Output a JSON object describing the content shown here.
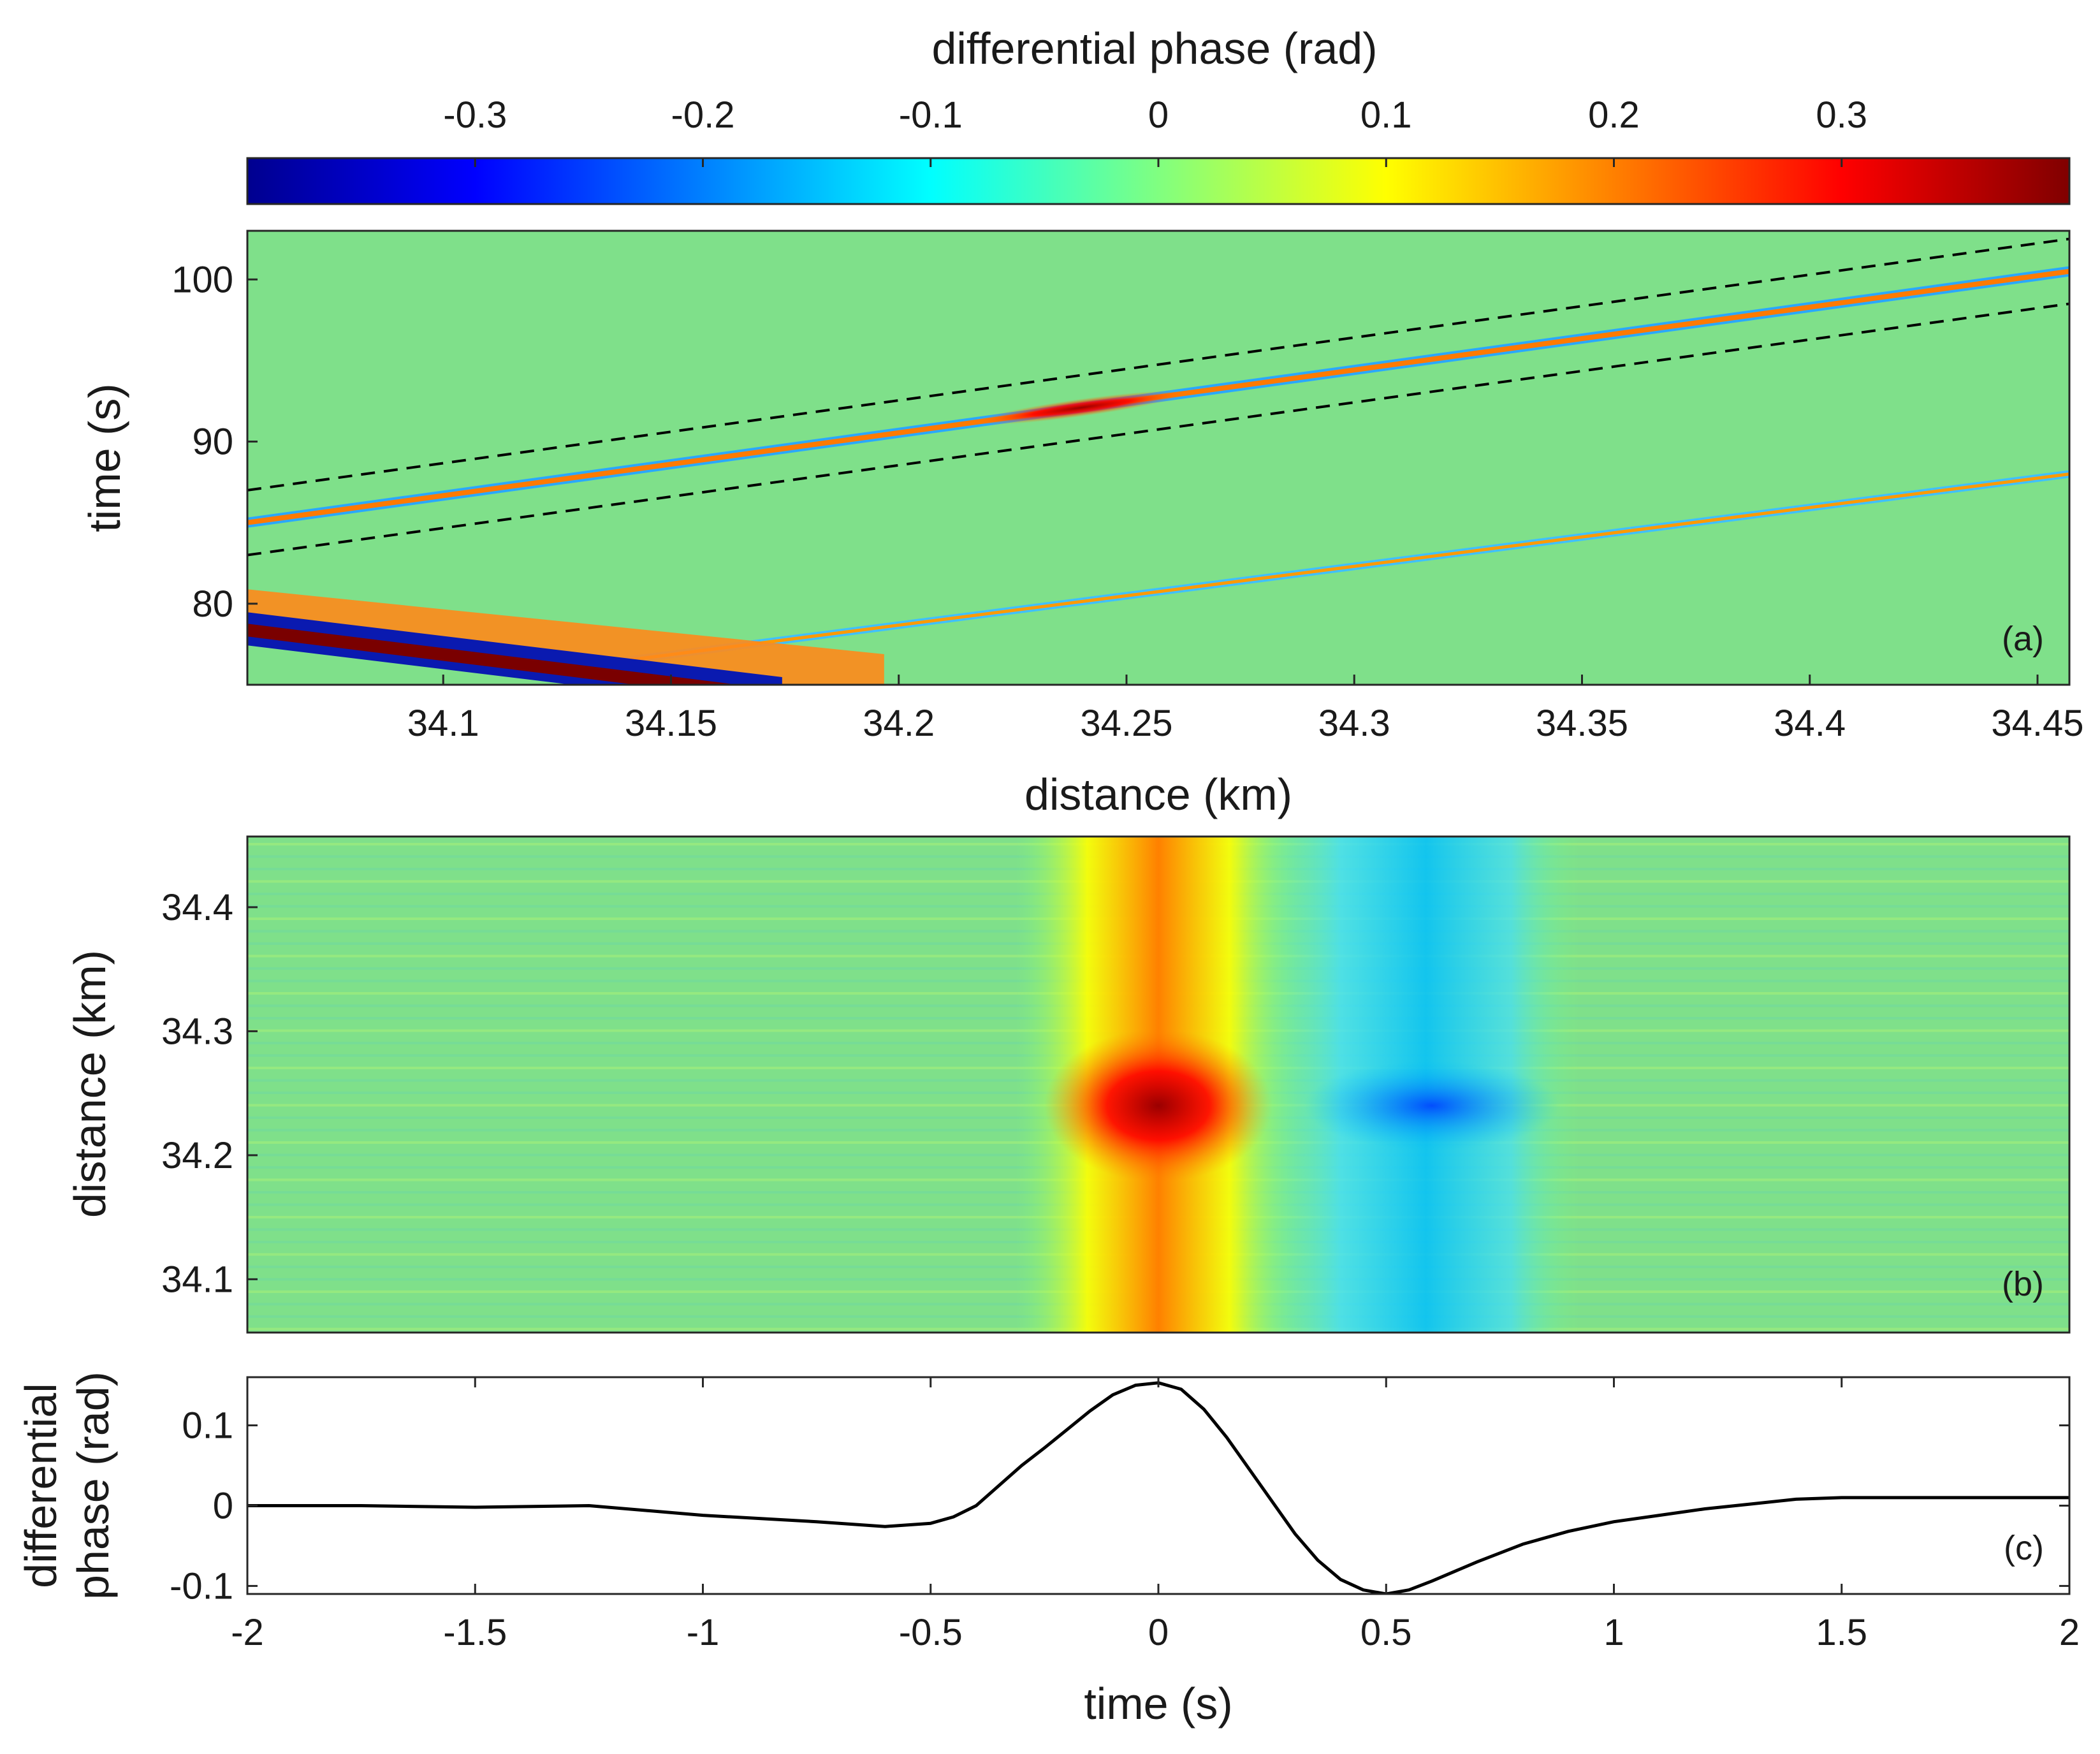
{
  "colors": {
    "frame": "#262626",
    "background_field": "#7fe08a",
    "line": "#000000",
    "colormap_stops": [
      "#00008f",
      "#0000ff",
      "#0080ff",
      "#00ffff",
      "#80ff80",
      "#ffff00",
      "#ff8000",
      "#ff0000",
      "#800000"
    ]
  },
  "chart_data": [
    {
      "id": "colorbar",
      "type": "heatmap",
      "title": "differential phase (rad)",
      "range": [
        -0.4,
        0.4
      ],
      "ticks": [
        -0.3,
        -0.2,
        -0.1,
        0,
        0.1,
        0.2,
        0.3
      ],
      "tick_labels": [
        "-0.3",
        "-0.2",
        "-0.1",
        "0",
        "0.1",
        "0.2",
        "0.3"
      ]
    },
    {
      "id": "a",
      "type": "heatmap",
      "panel_label": "(a)",
      "xlabel": "distance (km)",
      "ylabel": "time (s)",
      "xlim": [
        34.057,
        34.457
      ],
      "ylim": [
        75,
        103
      ],
      "xticks": [
        34.1,
        34.15,
        34.2,
        34.25,
        34.3,
        34.35,
        34.4,
        34.45
      ],
      "xtick_labels": [
        "34.1",
        "34.15",
        "34.2",
        "34.25",
        "34.3",
        "34.35",
        "34.4",
        "34.45"
      ],
      "yticks": [
        80,
        90,
        100
      ],
      "ytick_labels": [
        "80",
        "90",
        "100"
      ],
      "traces": [
        {
          "name": "main wave",
          "from": [
            34.057,
            85.0
          ],
          "to": [
            34.457,
            100.5
          ],
          "sign": "positive",
          "peak_near_km": 34.24
        },
        {
          "name": "secondary wave",
          "from": [
            34.14,
            76.5
          ],
          "to": [
            34.457,
            88.0
          ],
          "sign": "positive"
        },
        {
          "name": "strong near-field",
          "from": [
            34.057,
            79.0
          ],
          "to": [
            34.18,
            75.0
          ],
          "sign": "mixed"
        }
      ],
      "window_lines": [
        {
          "from": [
            34.057,
            87.0
          ],
          "to": [
            34.457,
            102.5
          ],
          "style": "dashed"
        },
        {
          "from": [
            34.057,
            83.0
          ],
          "to": [
            34.457,
            98.5
          ],
          "style": "dashed"
        }
      ]
    },
    {
      "id": "b",
      "type": "heatmap",
      "panel_label": "(b)",
      "xlabel": "",
      "ylabel": "distance (km)",
      "xlim": [
        -2,
        2
      ],
      "ylim": [
        34.057,
        34.457
      ],
      "yticks": [
        34.1,
        34.2,
        34.3,
        34.4
      ],
      "ytick_labels": [
        "34.1",
        "34.2",
        "34.3",
        "34.4"
      ],
      "features": [
        {
          "name": "positive band",
          "time_center": 0.0,
          "time_halfwidth": 0.25,
          "peak_value": 0.35,
          "peak_distance_km": 34.24
        },
        {
          "name": "negative band",
          "time_center": 0.55,
          "time_halfwidth": 0.25,
          "peak_value": -0.12,
          "peak_distance_km": 34.24
        }
      ]
    },
    {
      "id": "c",
      "type": "line",
      "panel_label": "(c)",
      "xlabel": "time (s)",
      "ylabel": [
        "differential",
        "phase (rad)"
      ],
      "xlim": [
        -2,
        2
      ],
      "ylim": [
        -0.11,
        0.16
      ],
      "xticks": [
        -2,
        -1.5,
        -1,
        -0.5,
        0,
        0.5,
        1,
        1.5,
        2
      ],
      "xtick_labels": [
        "-2",
        "-1.5",
        "-1",
        "-0.5",
        "0",
        "0.5",
        "1",
        "1.5",
        "2"
      ],
      "yticks": [
        -0.1,
        0,
        0.1
      ],
      "ytick_labels": [
        "-0.1",
        "0",
        "0.1"
      ],
      "series": [
        {
          "name": "stacked trace",
          "x": [
            -2.0,
            -1.75,
            -1.5,
            -1.25,
            -1.0,
            -0.75,
            -0.6,
            -0.5,
            -0.45,
            -0.4,
            -0.35,
            -0.3,
            -0.25,
            -0.2,
            -0.15,
            -0.1,
            -0.05,
            0.0,
            0.05,
            0.1,
            0.15,
            0.2,
            0.25,
            0.3,
            0.35,
            0.4,
            0.45,
            0.5,
            0.55,
            0.6,
            0.7,
            0.8,
            0.9,
            1.0,
            1.1,
            1.2,
            1.3,
            1.4,
            1.5,
            1.75,
            2.0
          ],
          "y": [
            0.0,
            0.0,
            -0.002,
            0.0,
            -0.012,
            -0.02,
            -0.026,
            -0.022,
            -0.014,
            0.0,
            0.025,
            0.05,
            0.072,
            0.095,
            0.118,
            0.138,
            0.15,
            0.153,
            0.145,
            0.12,
            0.085,
            0.045,
            0.005,
            -0.035,
            -0.068,
            -0.092,
            -0.105,
            -0.11,
            -0.105,
            -0.094,
            -0.07,
            -0.048,
            -0.032,
            -0.02,
            -0.012,
            -0.004,
            0.002,
            0.008,
            0.01,
            0.01,
            0.01
          ]
        }
      ]
    }
  ]
}
